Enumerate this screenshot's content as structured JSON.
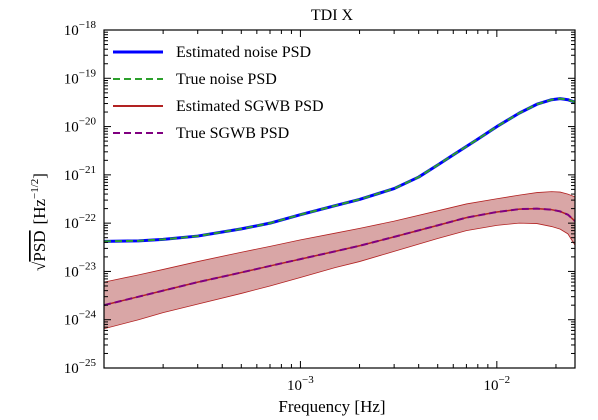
{
  "chart_data": {
    "type": "line",
    "title": "TDI X",
    "xlabel": "Frequency [Hz]",
    "ylabel_root": "PSD",
    "ylabel_unit": "[Hz",
    "ylabel_unit_exp": "−1/2",
    "ylabel_unit_close": "]",
    "xscale": "log",
    "yscale": "log",
    "xlim": [
      0.0001,
      0.025
    ],
    "ylim": [
      1e-25,
      1e-18
    ],
    "x_ticks": [
      {
        "value": 0.001,
        "base": "10",
        "exp": "−3"
      },
      {
        "value": 0.01,
        "base": "10",
        "exp": "−2"
      }
    ],
    "y_ticks": [
      {
        "value": 1e-18,
        "base": "10",
        "exp": "−18"
      },
      {
        "value": 1e-19,
        "base": "10",
        "exp": "−19"
      },
      {
        "value": 1e-20,
        "base": "10",
        "exp": "−20"
      },
      {
        "value": 1e-21,
        "base": "10",
        "exp": "−21"
      },
      {
        "value": 1e-22,
        "base": "10",
        "exp": "−22"
      },
      {
        "value": 1e-23,
        "base": "10",
        "exp": "−23"
      },
      {
        "value": 1e-24,
        "base": "10",
        "exp": "−24"
      },
      {
        "value": 1e-25,
        "base": "10",
        "exp": "−25"
      }
    ],
    "legend_position": "upper-left",
    "colors": {
      "estimated_noise": "#0000ff",
      "true_noise": "#2ca02c",
      "estimated_sgwb": "#b22222",
      "sgwb_band": "#c06a6a",
      "true_sgwb": "#800080"
    },
    "series": [
      {
        "name": "Estimated noise PSD",
        "style": "solid",
        "color": "#0000ff",
        "x": [
          0.0001,
          0.00015,
          0.0002,
          0.0003,
          0.0005,
          0.0007,
          0.001,
          0.0015,
          0.002,
          0.003,
          0.004,
          0.005,
          0.006,
          0.008,
          0.01,
          0.013,
          0.016,
          0.019,
          0.021,
          0.023,
          0.025
        ],
        "y": [
          4.2e-23,
          4.3e-23,
          4.6e-23,
          5.4e-23,
          7.6e-23,
          1e-22,
          1.5e-22,
          2.3e-22,
          3.1e-22,
          5.2e-22,
          9e-22,
          1.6e-21,
          2.6e-21,
          5.5e-21,
          1e-20,
          1.9e-20,
          2.9e-20,
          3.6e-20,
          3.8e-20,
          3.6e-20,
          3.2e-20
        ]
      },
      {
        "name": "True noise PSD",
        "style": "dashed",
        "color": "#2ca02c",
        "x": [
          0.0001,
          0.00015,
          0.0002,
          0.0003,
          0.0005,
          0.0007,
          0.001,
          0.0015,
          0.002,
          0.003,
          0.004,
          0.005,
          0.006,
          0.008,
          0.01,
          0.013,
          0.016,
          0.019,
          0.021,
          0.023,
          0.025
        ],
        "y": [
          4.2e-23,
          4.3e-23,
          4.6e-23,
          5.4e-23,
          7.6e-23,
          1e-22,
          1.5e-22,
          2.3e-22,
          3.1e-22,
          5.2e-22,
          9e-22,
          1.6e-21,
          2.6e-21,
          5.5e-21,
          1e-20,
          1.9e-20,
          2.9e-20,
          3.6e-20,
          3.8e-20,
          3.6e-20,
          3.2e-20
        ]
      },
      {
        "name": "Estimated SGWB PSD",
        "style": "solid",
        "color": "#b22222",
        "x": [
          0.0001,
          0.00015,
          0.0002,
          0.0003,
          0.0005,
          0.0007,
          0.001,
          0.0015,
          0.002,
          0.003,
          0.005,
          0.007,
          0.01,
          0.013,
          0.016,
          0.019,
          0.021,
          0.023,
          0.025
        ],
        "y": [
          2e-24,
          3e-24,
          4e-24,
          6e-24,
          9.5e-24,
          1.3e-23,
          1.8e-23,
          2.6e-23,
          3.4e-23,
          5.2e-23,
          9e-23,
          1.3e-22,
          1.7e-22,
          1.95e-22,
          2e-22,
          1.9e-22,
          1.75e-22,
          1.5e-22,
          1.1e-22
        ],
        "band_lower": [
          6.5e-25,
          1e-24,
          1.4e-24,
          2.1e-24,
          3.5e-24,
          5e-24,
          7.5e-24,
          1.2e-23,
          1.6e-23,
          2.6e-23,
          4.8e-23,
          7e-23,
          9e-23,
          1e-22,
          9.8e-23,
          8.5e-23,
          7.5e-23,
          6e-23,
          3.5e-23
        ],
        "band_upper": [
          6e-24,
          8.5e-24,
          1.1e-23,
          1.6e-23,
          2.5e-23,
          3.3e-23,
          4.5e-23,
          6.2e-23,
          7.8e-23,
          1.1e-22,
          1.8e-22,
          2.5e-22,
          3.2e-22,
          3.8e-22,
          4.3e-22,
          4.5e-22,
          4.4e-22,
          4e-22,
          3.5e-22
        ]
      },
      {
        "name": "True SGWB PSD",
        "style": "dashed",
        "color": "#800080",
        "x": [
          0.0001,
          0.00015,
          0.0002,
          0.0003,
          0.0005,
          0.0007,
          0.001,
          0.0015,
          0.002,
          0.003,
          0.005,
          0.007,
          0.01,
          0.013,
          0.016,
          0.019,
          0.021,
          0.023,
          0.025
        ],
        "y": [
          2e-24,
          3e-24,
          4e-24,
          6e-24,
          9.5e-24,
          1.3e-23,
          1.8e-23,
          2.6e-23,
          3.4e-23,
          5.2e-23,
          9e-23,
          1.3e-22,
          1.7e-22,
          1.95e-22,
          2e-22,
          1.9e-22,
          1.75e-22,
          1.5e-22,
          1.1e-22
        ]
      }
    ]
  }
}
